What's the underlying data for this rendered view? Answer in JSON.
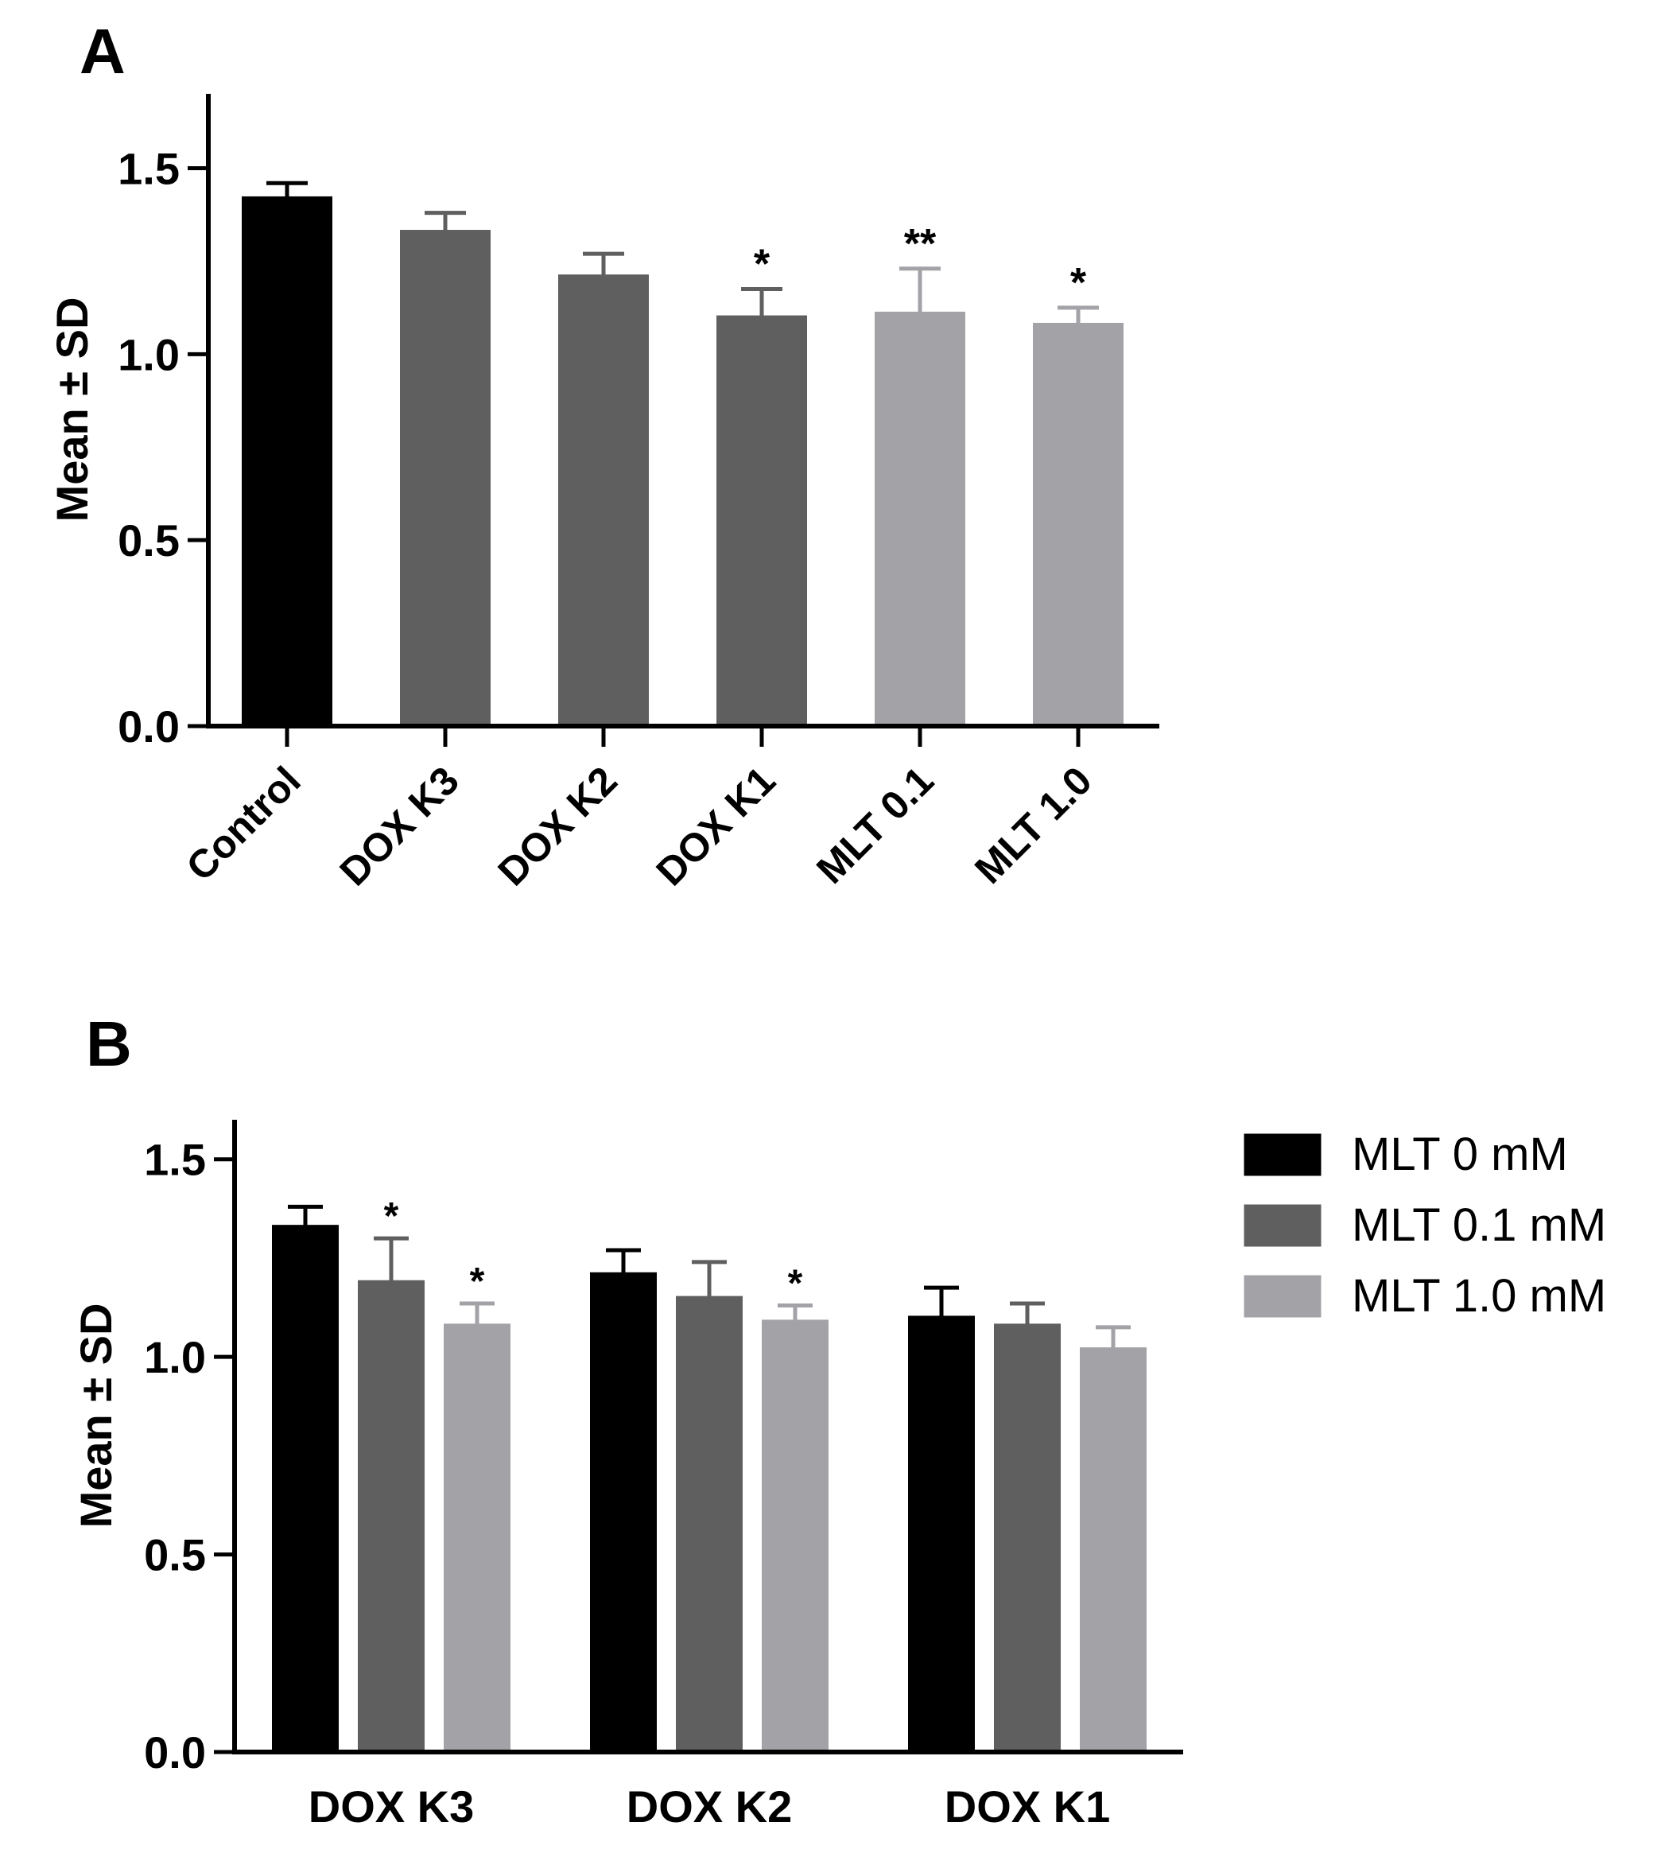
{
  "chart_data": [
    {
      "panel": "A",
      "type": "bar",
      "ylabel": "Mean ± SD",
      "ylim": [
        0.0,
        1.7
      ],
      "yticks": [
        "0.0",
        "0.5",
        "1.0",
        "1.5"
      ],
      "ytick_values": [
        0.0,
        0.5,
        1.0,
        1.5
      ],
      "categories": [
        "Control",
        "DOX K3",
        "DOX K2",
        "DOX K1",
        "MLT 0.1",
        "MLT 1.0"
      ],
      "values": [
        1.42,
        1.33,
        1.21,
        1.1,
        1.11,
        1.08
      ],
      "errors": [
        0.04,
        0.05,
        0.06,
        0.075,
        0.12,
        0.045
      ],
      "annotations": [
        "",
        "",
        "",
        "*",
        "**",
        "*"
      ],
      "colors": [
        "#000000",
        "#5f5f5f",
        "#5f5f5f",
        "#5f5f5f",
        "#a3a2a7",
        "#a3a2a7"
      ]
    },
    {
      "panel": "B",
      "type": "bar",
      "ylabel": "Mean ± SD",
      "ylim": [
        0.0,
        1.6
      ],
      "yticks": [
        "0.0",
        "0.5",
        "1.0",
        "1.5"
      ],
      "ytick_values": [
        0.0,
        0.5,
        1.0,
        1.5
      ],
      "categories": [
        "DOX K3",
        "DOX K2",
        "DOX K1"
      ],
      "series": [
        {
          "name": "MLT 0 mM",
          "color": "#000000",
          "values": [
            1.33,
            1.21,
            1.1
          ],
          "errors": [
            0.05,
            0.06,
            0.075
          ],
          "annotations": [
            "",
            "",
            ""
          ]
        },
        {
          "name": "MLT 0.1 mM",
          "color": "#5f5f5f",
          "values": [
            1.19,
            1.15,
            1.08
          ],
          "errors": [
            0.11,
            0.09,
            0.055
          ],
          "annotations": [
            "*",
            "",
            ""
          ]
        },
        {
          "name": "MLT 1.0 mM",
          "color": "#a3a2a7",
          "values": [
            1.08,
            1.09,
            1.02
          ],
          "errors": [
            0.055,
            0.04,
            0.055
          ],
          "annotations": [
            "*",
            "*",
            ""
          ]
        }
      ],
      "legend": "right"
    }
  ]
}
